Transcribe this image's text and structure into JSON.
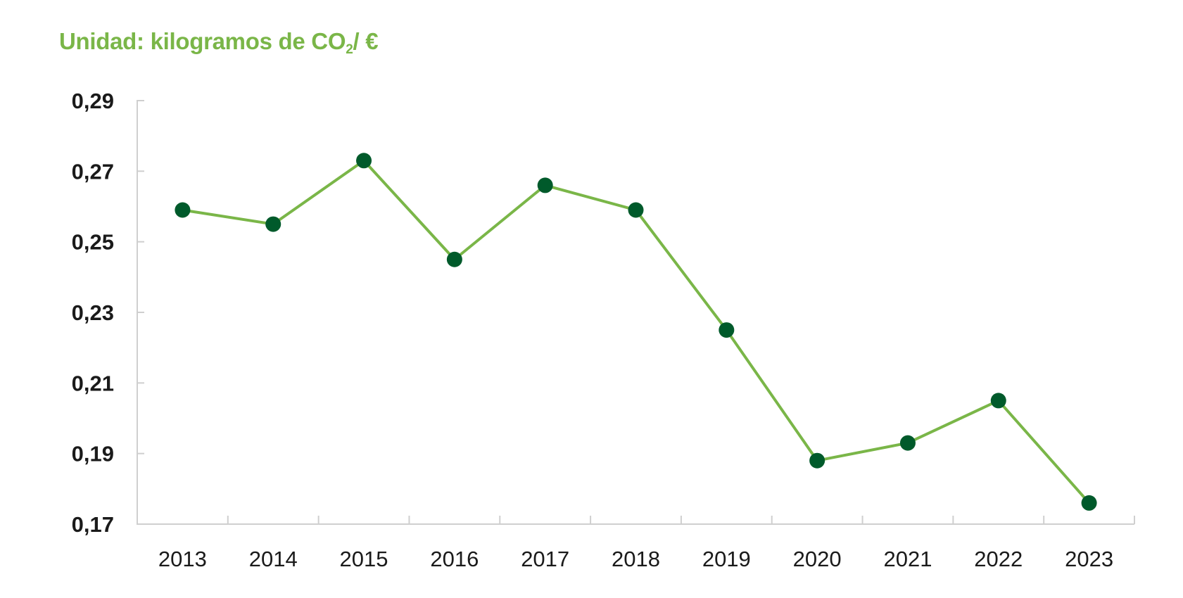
{
  "title": {
    "prefix": "Unidad: kilogramos de CO",
    "subscript": "2",
    "suffix": "/ €"
  },
  "colors": {
    "line": "#7ab648",
    "marker": "#005a2b",
    "axis": "#cfcfcf",
    "title": "#7ab648",
    "tick_text": "#1a1a1a"
  },
  "chart_data": {
    "type": "line",
    "title": "Unidad: kilogramos de CO2/ €",
    "xlabel": "",
    "ylabel": "",
    "categories": [
      "2013",
      "2014",
      "2015",
      "2016",
      "2017",
      "2018",
      "2019",
      "2020",
      "2021",
      "2022",
      "2023"
    ],
    "series": [
      {
        "values": [
          0.259,
          0.255,
          0.273,
          0.245,
          0.266,
          0.259,
          0.225,
          0.188,
          0.193,
          0.205,
          0.176
        ]
      }
    ],
    "ylim": [
      0.17,
      0.29
    ],
    "yticks": [
      0.17,
      0.19,
      0.21,
      0.23,
      0.25,
      0.27,
      0.29
    ],
    "ytick_labels": [
      "0,17",
      "0,19",
      "0,21",
      "0,23",
      "0,25",
      "0,27",
      "0,29"
    ],
    "grid": false,
    "legend": "none"
  }
}
